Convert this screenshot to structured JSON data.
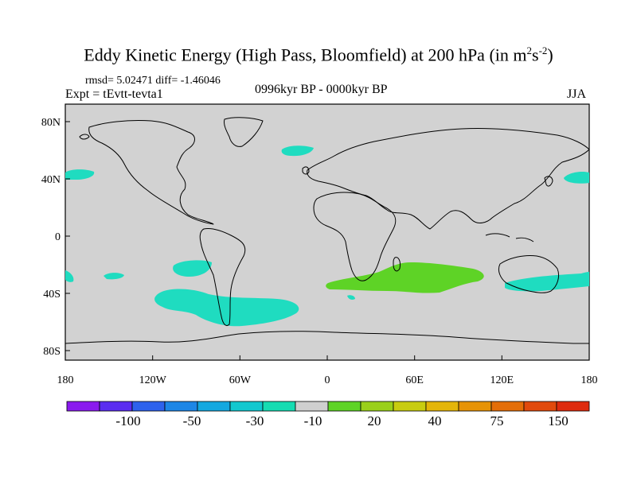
{
  "title_main": "Eddy Kinetic Energy (High Pass, Bloomfield) at 200 hPa (in m",
  "title_sup1": "2",
  "title_mid": "s",
  "title_sup2": "-2",
  "title_end": ")",
  "stats": "rmsd= 5.02471 diff= -1.46046",
  "expt": "Expt = tEvtt-tevta1",
  "period": "0996kyr BP - 0000kyr BP",
  "season": "JJA",
  "lat_ticks": [
    "80N",
    "40N",
    "0",
    "40S",
    "80S"
  ],
  "lon_ticks": [
    "180",
    "120W",
    "60W",
    "0",
    "60E",
    "120E",
    "180"
  ],
  "colorbar": {
    "labels": [
      "-100",
      "-50",
      "-30",
      "-10",
      "20",
      "40",
      "75",
      "150"
    ],
    "colors": [
      "#8a1aee",
      "#5a2df0",
      "#2e62ec",
      "#1d86e6",
      "#14a8e0",
      "#12c8cf",
      "#16dcb2",
      "#cfcfcf",
      "#5ed326",
      "#9ad01a",
      "#c8cc10",
      "#e4b509",
      "#e79307",
      "#e46e08",
      "#e14a0c",
      "#de2b0e"
    ]
  },
  "map_colors": {
    "background": "#d2d2d2",
    "negative": "#1fdcc0",
    "positive": "#5ed326"
  }
}
